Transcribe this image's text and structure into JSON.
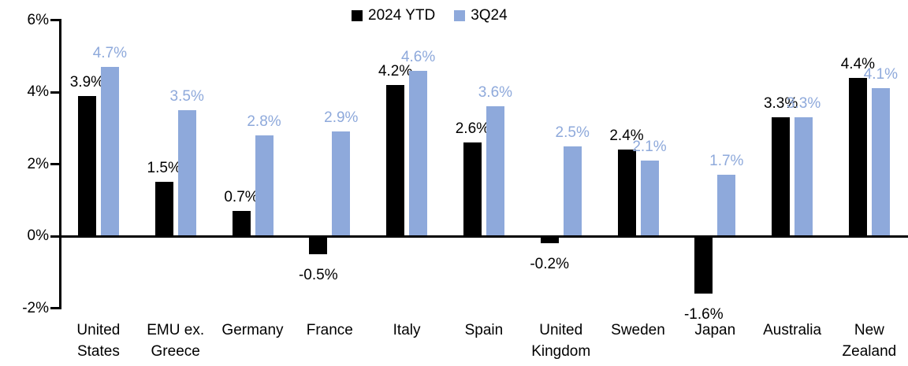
{
  "chart_data": {
    "type": "bar",
    "title": "",
    "xlabel": "",
    "ylabel": "",
    "ylim": [
      -2,
      6
    ],
    "grid": false,
    "legend_position": "top-center",
    "value_suffix": "%",
    "data_labels": true,
    "y_ticks": [
      {
        "value": 6,
        "label": "6%"
      },
      {
        "value": 4,
        "label": "4%"
      },
      {
        "value": 2,
        "label": "2%"
      },
      {
        "value": 0,
        "label": "0%"
      },
      {
        "value": -2,
        "label": "-2%"
      }
    ],
    "categories": [
      "United States",
      "EMU ex. Greece",
      "Germany",
      "France",
      "Italy",
      "Spain",
      "United Kingdom",
      "Sweden",
      "Japan",
      "Australia",
      "New Zealand"
    ],
    "category_label_lines": [
      [
        "United",
        "States"
      ],
      [
        "EMU ex.",
        "Greece"
      ],
      [
        "Germany"
      ],
      [
        "France"
      ],
      [
        "Italy"
      ],
      [
        "Spain"
      ],
      [
        "United",
        "Kingdom"
      ],
      [
        "Sweden"
      ],
      [
        "Japan"
      ],
      [
        "Australia"
      ],
      [
        "New",
        "Zealand"
      ]
    ],
    "series": [
      {
        "name": "2024 YTD",
        "color": "#000000",
        "values": [
          3.9,
          1.5,
          0.7,
          -0.5,
          4.2,
          2.6,
          -0.2,
          2.4,
          -1.6,
          3.3,
          4.4
        ]
      },
      {
        "name": "3Q24",
        "color": "#8EA9DB",
        "values": [
          4.7,
          3.5,
          2.8,
          2.9,
          4.6,
          3.6,
          2.5,
          2.1,
          1.7,
          3.3,
          4.1
        ]
      }
    ]
  }
}
